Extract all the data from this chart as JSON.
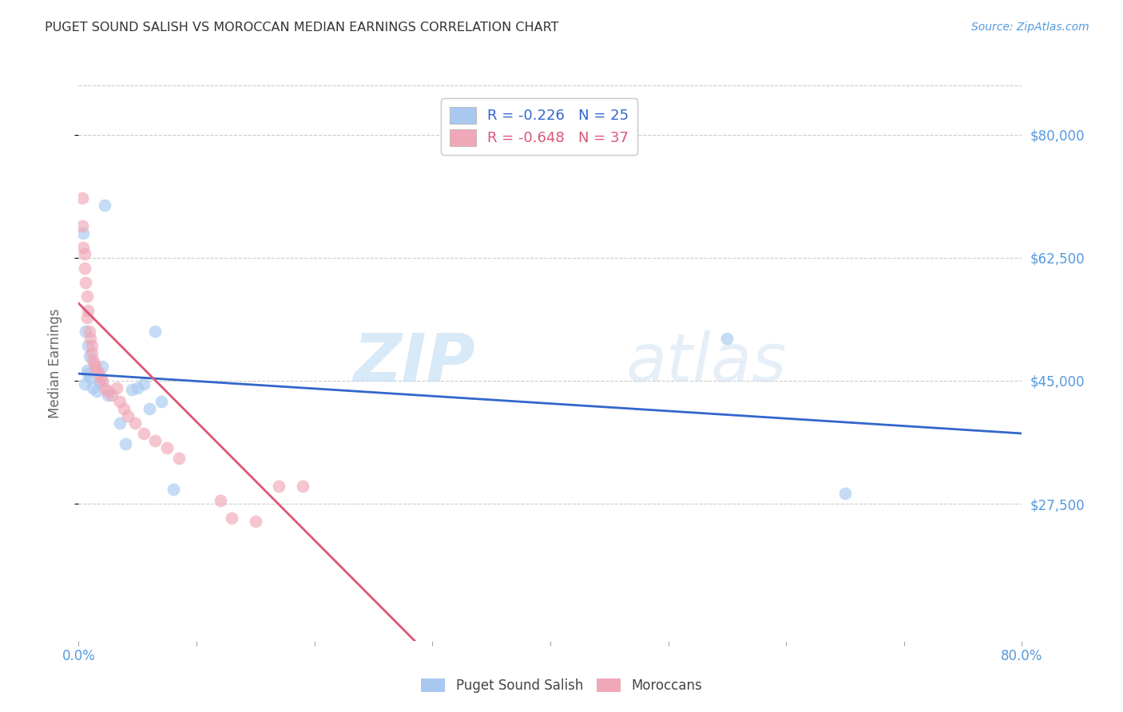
{
  "title": "PUGET SOUND SALISH VS MOROCCAN MEDIAN EARNINGS CORRELATION CHART",
  "source": "Source: ZipAtlas.com",
  "ylabel": "Median Earnings",
  "blue_label": "Puget Sound Salish",
  "pink_label": "Moroccans",
  "blue_R": -0.226,
  "blue_N": 25,
  "pink_R": -0.648,
  "pink_N": 37,
  "blue_color": "#a8c8f0",
  "pink_color": "#f0a8b8",
  "blue_line_color": "#3366cc",
  "pink_line_color": "#dd5577",
  "watermark_zip": "ZIP",
  "watermark_atlas": "atlas",
  "xlim": [
    0.0,
    0.8
  ],
  "ylim": [
    8000,
    87000
  ],
  "yticks": [
    27500,
    45000,
    62500,
    80000
  ],
  "ytick_labels": [
    "$27,500",
    "$45,000",
    "$62,500",
    "$80,000"
  ],
  "xtick_positions": [
    0.0,
    0.1,
    0.2,
    0.3,
    0.4,
    0.5,
    0.6,
    0.7,
    0.8
  ],
  "grid_color": "#cccccc",
  "background_color": "#ffffff",
  "title_color": "#333333",
  "axis_tick_color": "#5599dd",
  "blue_scatter_x": [
    0.022,
    0.004,
    0.006,
    0.008,
    0.009,
    0.007,
    0.008,
    0.01,
    0.005,
    0.012,
    0.015,
    0.02,
    0.018,
    0.025,
    0.065,
    0.055,
    0.05,
    0.045,
    0.035,
    0.04,
    0.07,
    0.08,
    0.55,
    0.65,
    0.06
  ],
  "blue_scatter_y": [
    70000,
    66000,
    52000,
    50000,
    48500,
    46500,
    46000,
    45500,
    44500,
    44000,
    43500,
    47000,
    44800,
    43000,
    52000,
    44500,
    44000,
    43800,
    39000,
    36000,
    42000,
    29500,
    51000,
    29000,
    41000
  ],
  "pink_scatter_x": [
    0.003,
    0.003,
    0.004,
    0.005,
    0.005,
    0.006,
    0.007,
    0.008,
    0.007,
    0.009,
    0.01,
    0.011,
    0.011,
    0.012,
    0.013,
    0.014,
    0.015,
    0.017,
    0.019,
    0.02,
    0.022,
    0.025,
    0.028,
    0.032,
    0.035,
    0.038,
    0.042,
    0.048,
    0.055,
    0.065,
    0.075,
    0.085,
    0.17,
    0.19,
    0.13,
    0.15,
    0.12
  ],
  "pink_scatter_y": [
    71000,
    67000,
    64000,
    63000,
    61000,
    59000,
    57000,
    55000,
    54000,
    52000,
    51000,
    50000,
    49000,
    48000,
    47500,
    47000,
    46500,
    46000,
    45500,
    45000,
    44000,
    43500,
    43000,
    44000,
    42000,
    41000,
    40000,
    39000,
    37500,
    36500,
    35500,
    34000,
    30000,
    30000,
    25500,
    25000,
    28000
  ],
  "blue_line_x": [
    0.0,
    0.8
  ],
  "blue_line_y": [
    46000,
    37500
  ],
  "pink_line_x": [
    0.0,
    0.285
  ],
  "pink_line_y": [
    56000,
    8000
  ],
  "marker_size": 130,
  "marker_alpha": 0.65
}
